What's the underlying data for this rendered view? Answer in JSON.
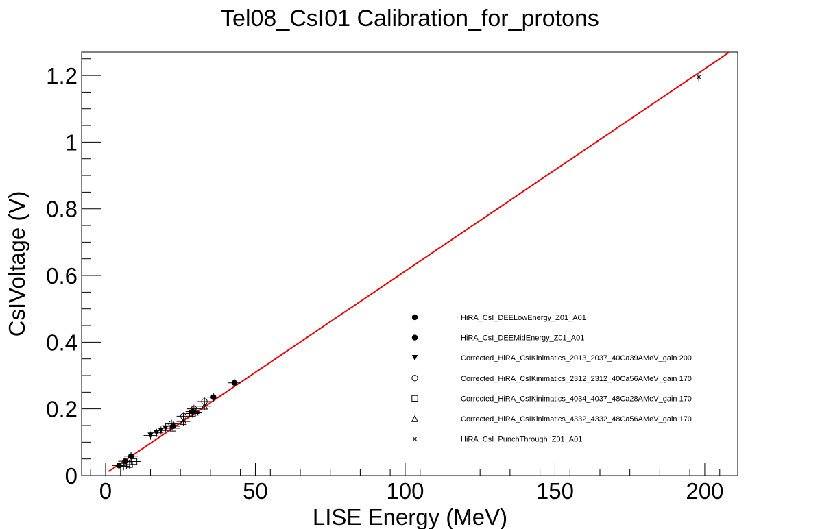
{
  "chart_data": {
    "type": "scatter",
    "title": "Tel08_CsI01 Calibration_for_protons",
    "xlabel": "LISE Energy (MeV)",
    "ylabel": "CsIVoltage (V)",
    "xlim": [
      -8,
      211
    ],
    "ylim": [
      0,
      1.27
    ],
    "x_ticks": [
      0,
      50,
      100,
      150,
      200
    ],
    "x_tick_labels": [
      "0",
      "50",
      "100",
      "150",
      "200"
    ],
    "y_ticks": [
      0,
      0.2,
      0.4,
      0.6,
      0.8,
      1.0,
      1.2
    ],
    "y_tick_labels": [
      "0",
      "0.2",
      "0.4",
      "0.6",
      "0.8",
      "1",
      "1.2"
    ],
    "grid": false,
    "legend_position": "bottom-right",
    "fit_line": {
      "color": "#e60000",
      "x_range": [
        1,
        208
      ],
      "slope": 0.00607,
      "intercept": 0.006
    },
    "series": [
      {
        "name": "HiRA_CsI_DEELowEnergy_Z01_A01",
        "marker": "filled-circle",
        "color": "#000000",
        "points": [
          [
            4.5,
            0.03
          ],
          [
            6.5,
            0.043
          ],
          [
            8.5,
            0.058
          ]
        ]
      },
      {
        "name": "HiRA_CsI_DEEMidEnergy_Z01_A01",
        "marker": "filled-circle",
        "color": "#000000",
        "points": [
          [
            22.5,
            0.148
          ],
          [
            29.0,
            0.192
          ],
          [
            36.0,
            0.235
          ],
          [
            43.0,
            0.278
          ]
        ]
      },
      {
        "name": "Corrected_HiRA_CsIKinimatics_2013_2037_40Ca39AMeV_gain 200",
        "marker": "filled-triangle-down",
        "color": "#000000",
        "points": [
          [
            15.0,
            0.12
          ],
          [
            17.0,
            0.128
          ],
          [
            18.5,
            0.135
          ],
          [
            20.0,
            0.142
          ]
        ]
      },
      {
        "name": "Corrected_HiRA_CsIKinimatics_2312_2312_40Ca56AMeV_gain 170",
        "marker": "open-circle",
        "color": "#000000",
        "points": [
          [
            22.0,
            0.155
          ],
          [
            26.0,
            0.178
          ],
          [
            29.5,
            0.2
          ],
          [
            33.0,
            0.222
          ]
        ]
      },
      {
        "name": "Corrected_HiRA_CsIKinimatics_4034_4037_48Ca28AMeV_gain 170",
        "marker": "open-square",
        "color": "#000000",
        "points": [
          [
            6.0,
            0.028
          ],
          [
            8.0,
            0.033
          ],
          [
            9.5,
            0.042
          ],
          [
            22.5,
            0.142
          ],
          [
            29.0,
            0.186
          ]
        ]
      },
      {
        "name": "Corrected_HiRA_CsIKinimatics_4332_4332_48Ca56AMeV_gain 170",
        "marker": "open-triangle-up",
        "color": "#000000",
        "points": [
          [
            26.0,
            0.162
          ],
          [
            30.0,
            0.19
          ],
          [
            33.0,
            0.208
          ]
        ]
      },
      {
        "name": "HiRA_CsI_PunchThrough_Z01_A01",
        "marker": "star",
        "color": "#000000",
        "points": [
          [
            198.0,
            1.195
          ]
        ]
      }
    ]
  }
}
